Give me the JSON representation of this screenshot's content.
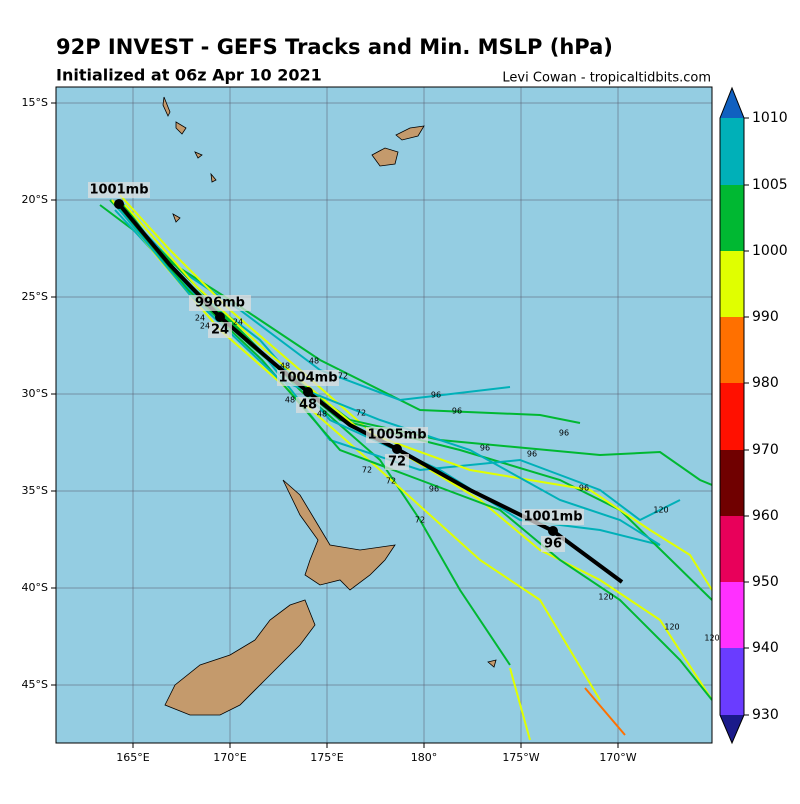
{
  "header": {
    "title": "92P INVEST - GEFS Tracks and Min. MSLP (hPa)",
    "subtitle": "Initialized at 06z Apr 10 2021",
    "credit": "Levi Cowan - tropicaltidbits.com"
  },
  "map": {
    "lon_labels": [
      "165°E",
      "170°E",
      "175°E",
      "180°",
      "175°W",
      "170°W"
    ],
    "lat_labels": [
      "15°S",
      "20°S",
      "25°S",
      "30°S",
      "35°S",
      "40°S",
      "45°S"
    ],
    "mean_track": [
      {
        "pressure": "1001mb"
      },
      {
        "pressure": "996mb",
        "hour": "24"
      },
      {
        "pressure": "1004mb",
        "hour": "48"
      },
      {
        "pressure": "1005mb",
        "hour": "72"
      },
      {
        "pressure": "1001mb",
        "hour": "96"
      }
    ],
    "member_labels": [
      "24",
      "24",
      "24",
      "48",
      "48",
      "48",
      "48",
      "72",
      "72",
      "72",
      "72",
      "72",
      "96",
      "96",
      "96",
      "96",
      "96",
      "96",
      "96",
      "120",
      "120",
      "120",
      "120"
    ]
  },
  "colorbar": {
    "ticks": [
      1010,
      1005,
      1000,
      990,
      980,
      970,
      960,
      950,
      940,
      930
    ]
  }
}
